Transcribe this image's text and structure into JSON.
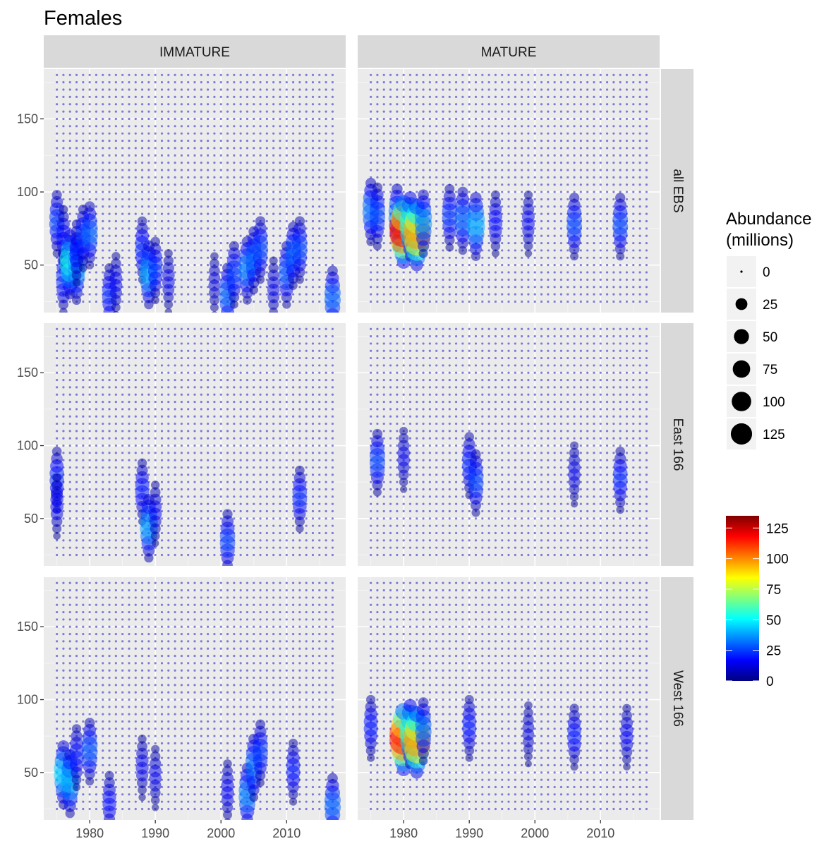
{
  "chart_data": {
    "type": "scatter",
    "title": "Females",
    "xlabel": "",
    "ylabel": "",
    "xlim": [
      1973,
      2019
    ],
    "ylim": [
      17.5,
      184
    ],
    "x_ticks": [
      1980,
      1990,
      2000,
      2010
    ],
    "y_ticks": [
      50,
      100,
      150
    ],
    "x_range": [
      1975,
      2017
    ],
    "y_range": [
      25,
      180
    ],
    "size_step": 5,
    "grid": true,
    "legend_position": "right",
    "facet_columns": [
      "IMMATURE",
      "MATURE"
    ],
    "facet_rows": [
      "all EBS",
      "East 166",
      "West 166"
    ],
    "size_legend": {
      "title_lines": [
        "Abundance",
        "(millions)"
      ],
      "values": [
        0,
        25,
        50,
        75,
        100,
        125
      ]
    },
    "color_legend": {
      "ticks": [
        125,
        100,
        75,
        50,
        25,
        0
      ],
      "min": 0,
      "max": 135,
      "colors": [
        "#00007F",
        "#0000FF",
        "#007FFF",
        "#00FFFF",
        "#7FFF7F",
        "#FFFF00",
        "#FF7F00",
        "#FF0000",
        "#7F0000"
      ]
    },
    "series": [
      {
        "name": "IMMATURE / all EBS",
        "clusters": [
          {
            "year": 1975,
            "size": 80,
            "value": 25
          },
          {
            "year": 1976,
            "size": 70,
            "value": 18
          },
          {
            "year": 1976,
            "size": 40,
            "value": 22
          },
          {
            "year": 1977,
            "size": 52,
            "value": 55
          },
          {
            "year": 1978,
            "size": 48,
            "value": 38
          },
          {
            "year": 1978,
            "size": 60,
            "value": 20
          },
          {
            "year": 1979,
            "size": 70,
            "value": 24
          },
          {
            "year": 1980,
            "size": 72,
            "value": 30
          },
          {
            "year": 1983,
            "size": 30,
            "value": 22
          },
          {
            "year": 1984,
            "size": 38,
            "value": 15
          },
          {
            "year": 1988,
            "size": 62,
            "value": 22
          },
          {
            "year": 1989,
            "size": 45,
            "value": 40
          },
          {
            "year": 1990,
            "size": 48,
            "value": 22
          },
          {
            "year": 1992,
            "size": 40,
            "value": 14
          },
          {
            "year": 1999,
            "size": 38,
            "value": 12
          },
          {
            "year": 2001,
            "size": 30,
            "value": 30
          },
          {
            "year": 2002,
            "size": 45,
            "value": 25
          },
          {
            "year": 2004,
            "size": 48,
            "value": 34
          },
          {
            "year": 2005,
            "size": 55,
            "value": 30
          },
          {
            "year": 2006,
            "size": 62,
            "value": 26
          },
          {
            "year": 2008,
            "size": 35,
            "value": 14
          },
          {
            "year": 2010,
            "size": 45,
            "value": 28
          },
          {
            "year": 2011,
            "size": 58,
            "value": 30
          },
          {
            "year": 2012,
            "size": 62,
            "value": 26
          },
          {
            "year": 2017,
            "size": 28,
            "value": 30
          }
        ]
      },
      {
        "name": "MATURE / all EBS",
        "clusters": [
          {
            "year": 1975,
            "size": 88,
            "value": 32
          },
          {
            "year": 1976,
            "size": 85,
            "value": 26
          },
          {
            "year": 1979,
            "size": 84,
            "value": 34
          },
          {
            "year": 1980,
            "size": 74,
            "value": 120
          },
          {
            "year": 1981,
            "size": 78,
            "value": 58
          },
          {
            "year": 1982,
            "size": 72,
            "value": 100
          },
          {
            "year": 1983,
            "size": 80,
            "value": 35
          },
          {
            "year": 1987,
            "size": 84,
            "value": 24
          },
          {
            "year": 1989,
            "size": 82,
            "value": 30
          },
          {
            "year": 1991,
            "size": 78,
            "value": 40
          },
          {
            "year": 1994,
            "size": 80,
            "value": 18
          },
          {
            "year": 1999,
            "size": 80,
            "value": 15
          },
          {
            "year": 2006,
            "size": 78,
            "value": 26
          },
          {
            "year": 2013,
            "size": 78,
            "value": 26
          }
        ]
      },
      {
        "name": "IMMATURE / East 166",
        "clusters": [
          {
            "year": 1975,
            "size": 78,
            "value": 22
          },
          {
            "year": 1975,
            "size": 60,
            "value": 16
          },
          {
            "year": 1988,
            "size": 70,
            "value": 20
          },
          {
            "year": 1989,
            "size": 45,
            "value": 38
          },
          {
            "year": 1990,
            "size": 55,
            "value": 15
          },
          {
            "year": 2001,
            "size": 35,
            "value": 25
          },
          {
            "year": 2012,
            "size": 65,
            "value": 22
          }
        ]
      },
      {
        "name": "MATURE / East 166",
        "clusters": [
          {
            "year": 1976,
            "size": 90,
            "value": 26
          },
          {
            "year": 1980,
            "size": 92,
            "value": 14
          },
          {
            "year": 1990,
            "size": 88,
            "value": 22
          },
          {
            "year": 1991,
            "size": 76,
            "value": 26
          },
          {
            "year": 2006,
            "size": 82,
            "value": 14
          },
          {
            "year": 2013,
            "size": 78,
            "value": 22
          }
        ]
      },
      {
        "name": "IMMATURE / West 166",
        "clusters": [
          {
            "year": 1976,
            "size": 50,
            "value": 45
          },
          {
            "year": 1977,
            "size": 44,
            "value": 40
          },
          {
            "year": 1978,
            "size": 62,
            "value": 20
          },
          {
            "year": 1980,
            "size": 66,
            "value": 28
          },
          {
            "year": 1983,
            "size": 30,
            "value": 18
          },
          {
            "year": 1988,
            "size": 55,
            "value": 15
          },
          {
            "year": 1990,
            "size": 48,
            "value": 14
          },
          {
            "year": 2001,
            "size": 38,
            "value": 16
          },
          {
            "year": 2004,
            "size": 35,
            "value": 34
          },
          {
            "year": 2005,
            "size": 55,
            "value": 32
          },
          {
            "year": 2006,
            "size": 65,
            "value": 24
          },
          {
            "year": 2011,
            "size": 52,
            "value": 20
          },
          {
            "year": 2017,
            "size": 28,
            "value": 30
          }
        ]
      },
      {
        "name": "MATURE / West 166",
        "clusters": [
          {
            "year": 1975,
            "size": 82,
            "value": 20
          },
          {
            "year": 1980,
            "size": 74,
            "value": 118
          },
          {
            "year": 1981,
            "size": 78,
            "value": 58
          },
          {
            "year": 1982,
            "size": 72,
            "value": 100
          },
          {
            "year": 1983,
            "size": 80,
            "value": 30
          },
          {
            "year": 1990,
            "size": 82,
            "value": 20
          },
          {
            "year": 1999,
            "size": 78,
            "value": 12
          },
          {
            "year": 2006,
            "size": 76,
            "value": 20
          },
          {
            "year": 2014,
            "size": 76,
            "value": 16
          }
        ]
      }
    ]
  }
}
